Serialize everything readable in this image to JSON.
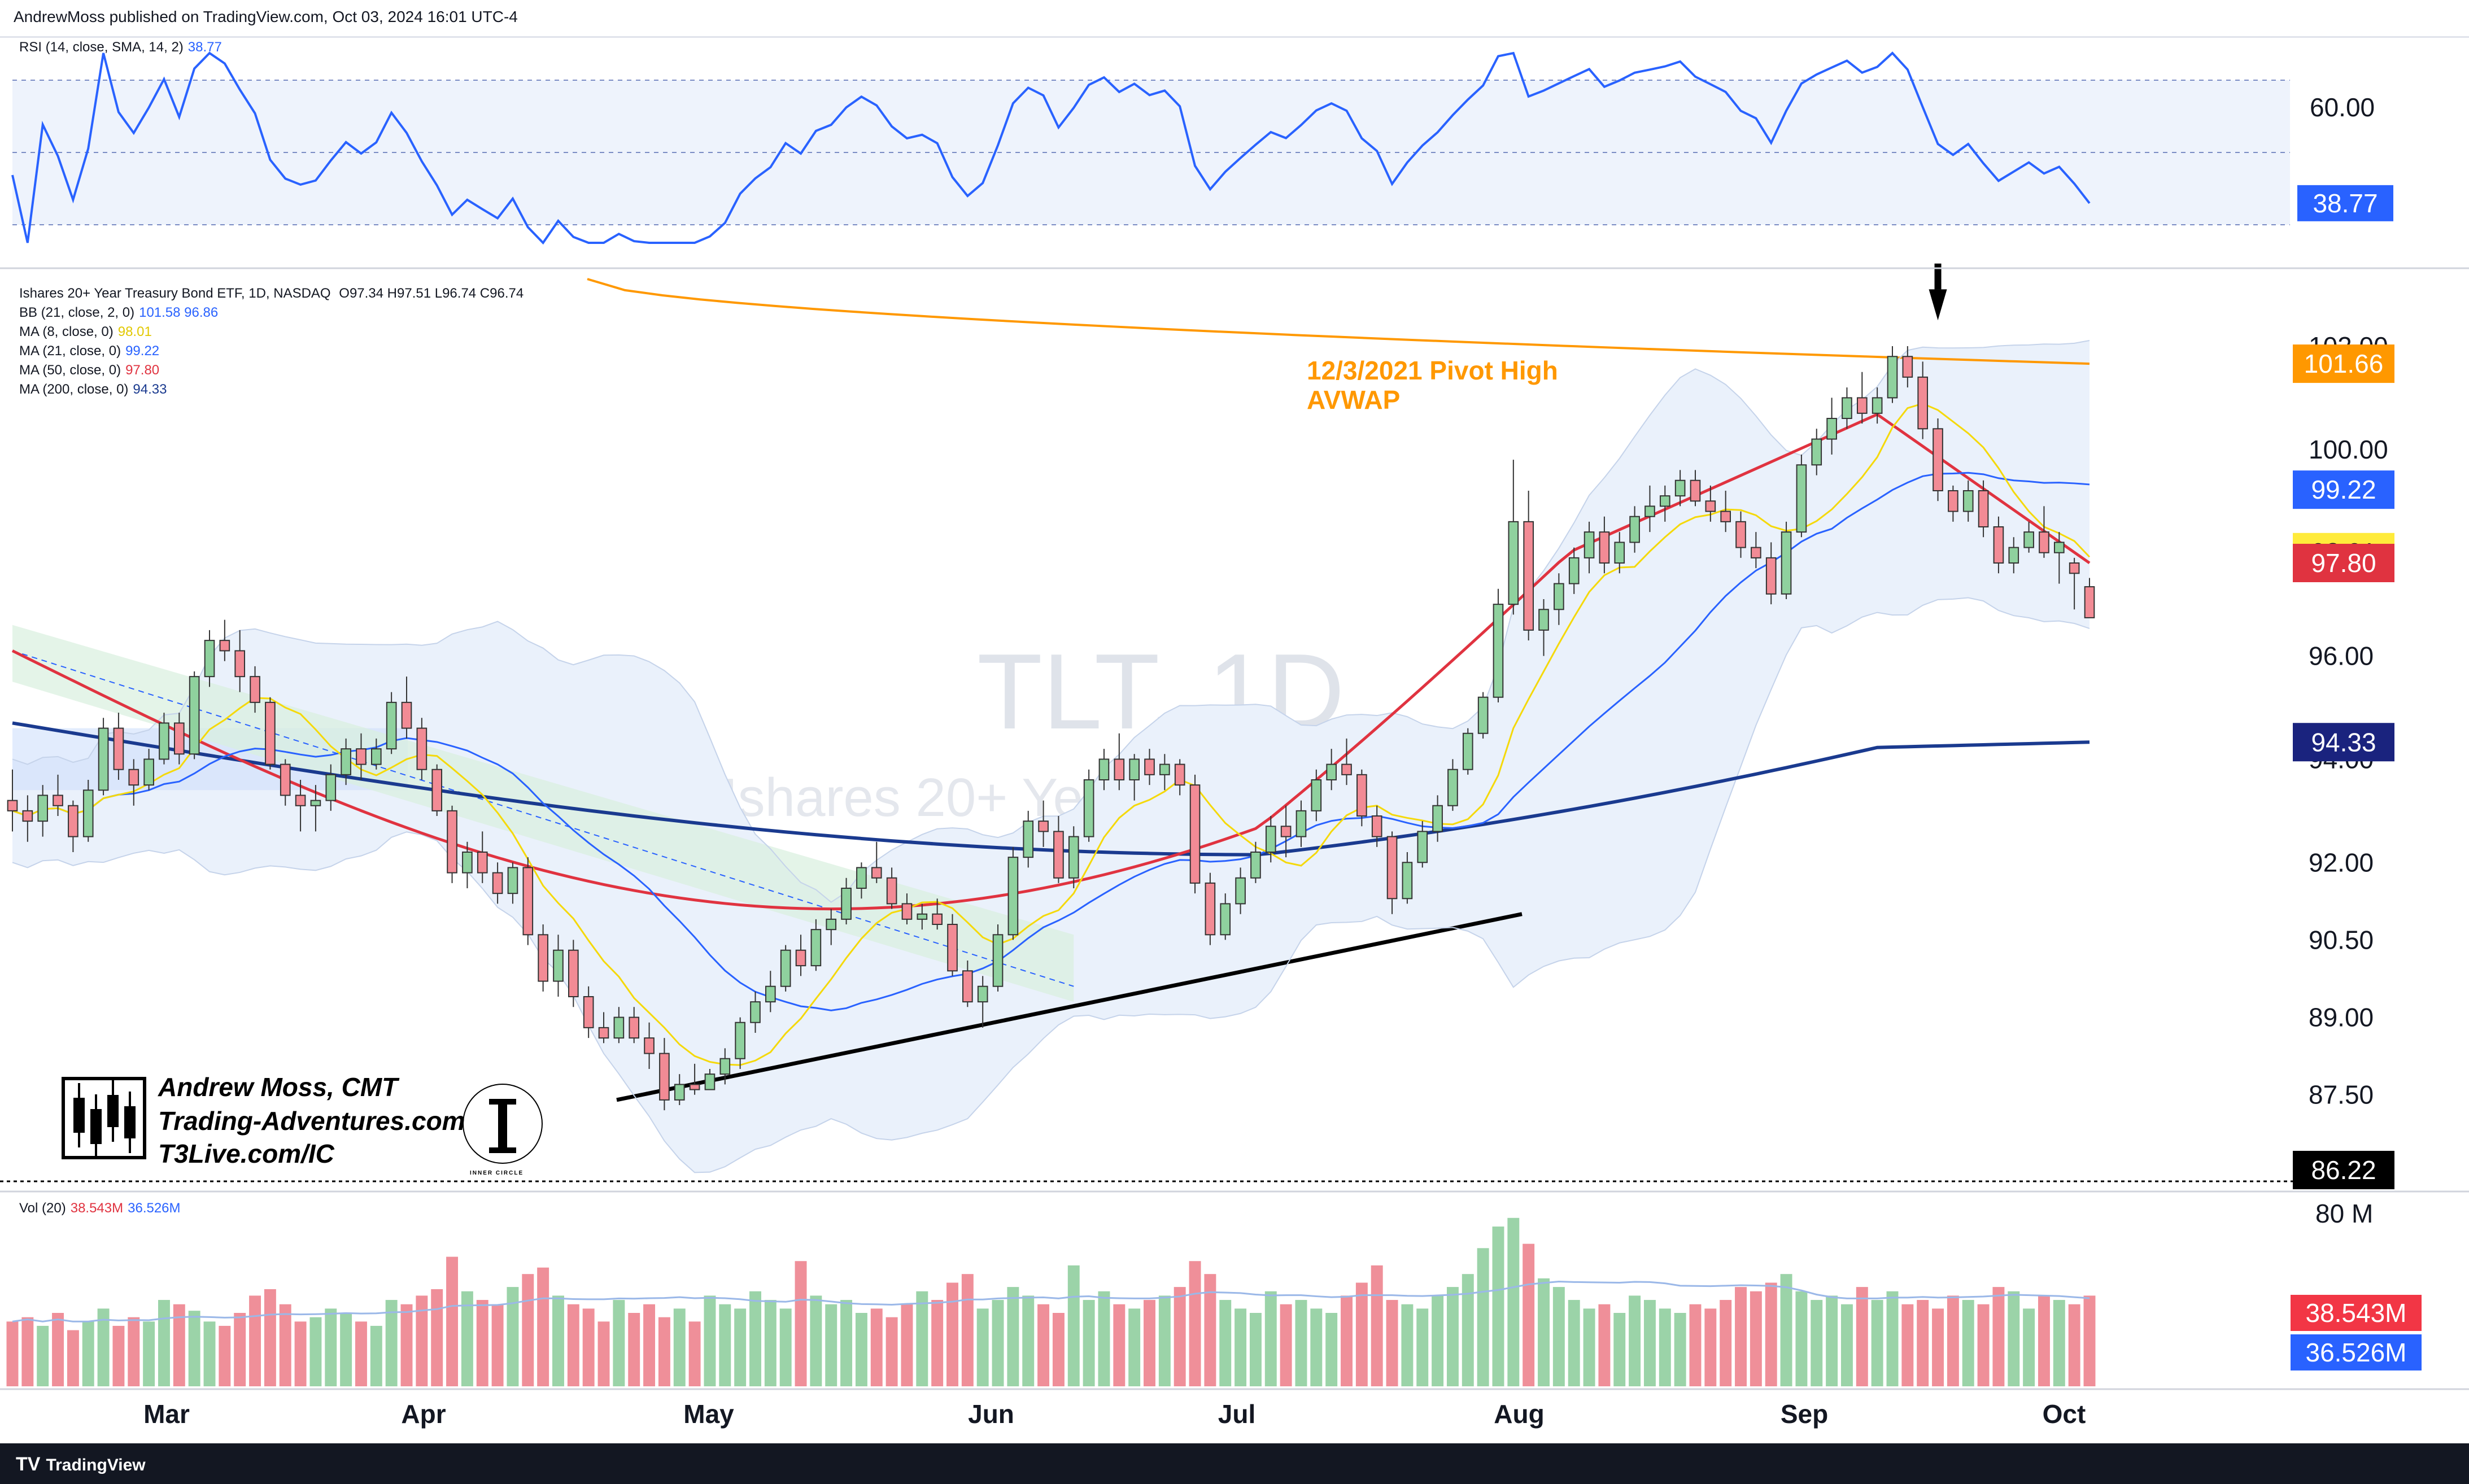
{
  "header": {
    "published": "AndrewMoss published on TradingView.com, Oct 03, 2024 16:01 UTC-4"
  },
  "footer": {
    "brand": "TradingView"
  },
  "rsi": {
    "legend": "RSI (14, close, SMA, 14, 2)",
    "value": "38.77",
    "axis_labels": [
      "60.00"
    ],
    "last_label": "38.77",
    "last_color": "#2962ff",
    "upper_band": 66,
    "lower_band": 34,
    "mid_band": 50
  },
  "price_legend": {
    "symbol": "Ishares 20+ Year Treasury Bond ETF, 1D, NASDAQ",
    "ohlc": "O97.34  H97.51  L96.74  C96.74",
    "lines": [
      {
        "label": "BB (21, close, 2, 0)",
        "values": "101.58  96.86",
        "color": "#2962ff"
      },
      {
        "label": "MA (8, close, 0)",
        "values": "98.01",
        "color": "#f5d90a"
      },
      {
        "label": "MA (21, close, 0)",
        "values": "99.22",
        "color": "#2962ff"
      },
      {
        "label": "MA (50, close, 0)",
        "values": "97.80",
        "color": "#e03340"
      },
      {
        "label": "MA (200, close, 0)",
        "values": "94.33",
        "color": "#1a3a8f"
      }
    ]
  },
  "volume": {
    "legend": "Vol (20)",
    "v1": "38.543M",
    "v2": "36.526M",
    "axis_label": "80 M",
    "tag1": "38.543M",
    "tag2": "36.526M"
  },
  "price_tags": [
    {
      "text": "101.66",
      "value": 101.66,
      "color": "#ff9800"
    },
    {
      "text": "99.22",
      "value": 99.22,
      "color": "#2962ff"
    },
    {
      "text": "98.01",
      "value": 98.01,
      "color": "#ffeb3b",
      "text_color": "#131722"
    },
    {
      "text": "97.80",
      "value": 97.8,
      "color": "#e03340"
    },
    {
      "text": "94.33",
      "value": 94.33,
      "color": "#1a237e"
    },
    {
      "text": "86.22",
      "value": 86.22,
      "color": "#000000"
    }
  ],
  "annotation": {
    "line1": "12/3/2021 Pivot High",
    "line2": "AVWAP",
    "color": "#ff9800"
  },
  "watermark": {
    "symbol": "TLT, 1D",
    "name": "Ishares 20+ Year Treasury Bond ETF"
  },
  "branding": {
    "name": "Andrew Moss, CMT",
    "site": "Trading-Adventures.com",
    "site2": "T3Live.com/IC",
    "logo_text": "INNER CIRCLE"
  },
  "colors": {
    "up": "#8fd19e",
    "down": "#f28b95",
    "bb_fill": "#eaf1fb",
    "avwap": "#ff9800",
    "trend": "#000000"
  },
  "chart_data": {
    "type": "candlestick",
    "title": "Ishares 20+ Year Treasury Bond ETF, 1D, NASDAQ",
    "x_tick_labels": [
      "Mar",
      "Apr",
      "May",
      "Jun",
      "Jul",
      "Aug",
      "Sep",
      "Oct"
    ],
    "y_tick_labels": [
      "102.00",
      "100.00",
      "96.00",
      "94.00",
      "92.00",
      "90.50",
      "89.00",
      "87.50"
    ],
    "y_ticks": [
      102,
      100,
      96,
      94,
      92,
      90.5,
      89,
      87.5
    ],
    "ylim": [
      85.9,
      103.4
    ],
    "ohlc_approx": [
      [
        93.2,
        93.8,
        92.6,
        93.0
      ],
      [
        93.0,
        93.3,
        92.4,
        92.8
      ],
      [
        92.8,
        93.5,
        92.5,
        93.3
      ],
      [
        93.3,
        93.7,
        92.9,
        93.1
      ],
      [
        93.1,
        93.2,
        92.2,
        92.5
      ],
      [
        92.5,
        93.6,
        92.4,
        93.4
      ],
      [
        93.4,
        94.8,
        93.3,
        94.6
      ],
      [
        94.6,
        94.9,
        93.6,
        93.8
      ],
      [
        93.8,
        94.0,
        93.1,
        93.5
      ],
      [
        93.5,
        94.2,
        93.4,
        94.0
      ],
      [
        94.0,
        94.9,
        93.9,
        94.7
      ],
      [
        94.7,
        94.9,
        93.9,
        94.1
      ],
      [
        94.1,
        95.7,
        94.0,
        95.6
      ],
      [
        95.6,
        96.5,
        95.4,
        96.3
      ],
      [
        96.3,
        96.7,
        95.9,
        96.1
      ],
      [
        96.1,
        96.5,
        95.3,
        95.6
      ],
      [
        95.6,
        95.8,
        94.9,
        95.1
      ],
      [
        95.1,
        95.2,
        93.8,
        93.9
      ],
      [
        93.9,
        94.0,
        93.1,
        93.3
      ],
      [
        93.3,
        93.6,
        92.6,
        93.1
      ],
      [
        93.1,
        93.5,
        92.6,
        93.2
      ],
      [
        93.2,
        93.9,
        93.0,
        93.7
      ],
      [
        93.7,
        94.4,
        93.5,
        94.2
      ],
      [
        94.2,
        94.5,
        93.6,
        93.9
      ],
      [
        93.9,
        94.4,
        93.8,
        94.2
      ],
      [
        94.2,
        95.3,
        94.1,
        95.1
      ],
      [
        95.1,
        95.6,
        94.4,
        94.6
      ],
      [
        94.6,
        94.8,
        93.6,
        93.8
      ],
      [
        93.8,
        93.9,
        92.9,
        93.0
      ],
      [
        93.0,
        93.1,
        91.6,
        91.8
      ],
      [
        91.8,
        92.4,
        91.5,
        92.2
      ],
      [
        92.2,
        92.6,
        91.6,
        91.8
      ],
      [
        91.8,
        92.0,
        91.2,
        91.4
      ],
      [
        91.4,
        92.0,
        91.2,
        91.9
      ],
      [
        91.9,
        92.1,
        90.4,
        90.6
      ],
      [
        90.6,
        90.8,
        89.5,
        89.7
      ],
      [
        89.7,
        90.6,
        89.4,
        90.3
      ],
      [
        90.3,
        90.5,
        89.2,
        89.4
      ],
      [
        89.4,
        89.6,
        88.6,
        88.8
      ],
      [
        88.8,
        89.1,
        88.5,
        88.6
      ],
      [
        88.6,
        89.2,
        88.5,
        89.0
      ],
      [
        89.0,
        89.2,
        88.5,
        88.6
      ],
      [
        88.6,
        88.9,
        88.0,
        88.3
      ],
      [
        88.3,
        88.6,
        87.2,
        87.4
      ],
      [
        87.4,
        87.9,
        87.3,
        87.7
      ],
      [
        87.7,
        88.1,
        87.5,
        87.6
      ],
      [
        87.6,
        88.0,
        87.6,
        87.9
      ],
      [
        87.9,
        88.4,
        87.7,
        88.2
      ],
      [
        88.2,
        89.0,
        88.0,
        88.9
      ],
      [
        88.9,
        89.5,
        88.7,
        89.3
      ],
      [
        89.3,
        89.9,
        89.1,
        89.6
      ],
      [
        89.6,
        90.4,
        89.5,
        90.3
      ],
      [
        90.3,
        90.6,
        89.8,
        90.0
      ],
      [
        90.0,
        90.9,
        89.9,
        90.7
      ],
      [
        90.7,
        91.1,
        90.4,
        90.9
      ],
      [
        90.9,
        91.7,
        90.8,
        91.5
      ],
      [
        91.5,
        92.0,
        91.3,
        91.9
      ],
      [
        91.9,
        92.4,
        91.6,
        91.7
      ],
      [
        91.7,
        91.9,
        91.1,
        91.2
      ],
      [
        91.2,
        91.4,
        90.8,
        90.9
      ],
      [
        90.9,
        91.2,
        90.7,
        91.0
      ],
      [
        91.0,
        91.3,
        90.7,
        90.8
      ],
      [
        90.8,
        91.0,
        89.8,
        89.9
      ],
      [
        89.9,
        90.1,
        89.2,
        89.3
      ],
      [
        89.3,
        89.8,
        88.8,
        89.6
      ],
      [
        89.6,
        90.8,
        89.5,
        90.6
      ],
      [
        90.6,
        92.3,
        90.5,
        92.1
      ],
      [
        92.1,
        93.0,
        91.9,
        92.8
      ],
      [
        92.8,
        93.2,
        92.3,
        92.6
      ],
      [
        92.6,
        92.9,
        91.6,
        91.7
      ],
      [
        91.7,
        92.7,
        91.5,
        92.5
      ],
      [
        92.5,
        93.8,
        92.4,
        93.6
      ],
      [
        93.6,
        94.2,
        93.4,
        94.0
      ],
      [
        94.0,
        94.5,
        93.4,
        93.6
      ],
      [
        93.6,
        94.1,
        93.2,
        94.0
      ],
      [
        94.0,
        94.2,
        93.5,
        93.7
      ],
      [
        93.7,
        94.1,
        93.4,
        93.9
      ],
      [
        93.9,
        94.0,
        93.3,
        93.5
      ],
      [
        93.5,
        93.7,
        91.4,
        91.6
      ],
      [
        91.6,
        91.8,
        90.4,
        90.6
      ],
      [
        90.6,
        91.4,
        90.5,
        91.2
      ],
      [
        91.2,
        91.9,
        91.0,
        91.7
      ],
      [
        91.7,
        92.4,
        91.6,
        92.2
      ],
      [
        92.2,
        92.9,
        92.0,
        92.7
      ],
      [
        92.7,
        93.1,
        92.1,
        92.5
      ],
      [
        92.5,
        93.2,
        92.3,
        93.0
      ],
      [
        93.0,
        93.8,
        92.8,
        93.6
      ],
      [
        93.6,
        94.2,
        93.4,
        93.9
      ],
      [
        93.9,
        94.4,
        93.5,
        93.7
      ],
      [
        93.7,
        93.8,
        92.7,
        92.9
      ],
      [
        92.9,
        93.1,
        92.3,
        92.5
      ],
      [
        92.5,
        92.6,
        91.0,
        91.3
      ],
      [
        91.3,
        92.2,
        91.2,
        92.0
      ],
      [
        92.0,
        92.8,
        91.9,
        92.6
      ],
      [
        92.6,
        93.3,
        92.4,
        93.1
      ],
      [
        93.1,
        94.0,
        93.0,
        93.8
      ],
      [
        93.8,
        94.6,
        93.7,
        94.5
      ],
      [
        94.5,
        95.3,
        94.4,
        95.2
      ],
      [
        95.2,
        97.3,
        95.1,
        97.0
      ],
      [
        97.0,
        99.8,
        96.8,
        98.6
      ],
      [
        98.6,
        99.2,
        96.3,
        96.5
      ],
      [
        96.5,
        97.1,
        96.0,
        96.9
      ],
      [
        96.9,
        97.6,
        96.6,
        97.4
      ],
      [
        97.4,
        98.1,
        97.2,
        97.9
      ],
      [
        97.9,
        98.6,
        97.6,
        98.4
      ],
      [
        98.4,
        98.7,
        97.6,
        97.8
      ],
      [
        97.8,
        98.4,
        97.6,
        98.2
      ],
      [
        98.2,
        98.9,
        98.0,
        98.7
      ],
      [
        98.7,
        99.3,
        98.4,
        98.9
      ],
      [
        98.9,
        99.3,
        98.6,
        99.1
      ],
      [
        99.1,
        99.6,
        98.9,
        99.4
      ],
      [
        99.4,
        99.6,
        98.9,
        99.0
      ],
      [
        99.0,
        99.3,
        98.6,
        98.8
      ],
      [
        98.8,
        99.2,
        98.4,
        98.6
      ],
      [
        98.6,
        98.8,
        97.9,
        98.1
      ],
      [
        98.1,
        98.4,
        97.7,
        97.9
      ],
      [
        97.9,
        98.2,
        97.0,
        97.2
      ],
      [
        97.2,
        98.6,
        97.1,
        98.4
      ],
      [
        98.4,
        99.9,
        98.3,
        99.7
      ],
      [
        99.7,
        100.4,
        99.5,
        100.2
      ],
      [
        100.2,
        101.0,
        99.9,
        100.6
      ],
      [
        100.6,
        101.2,
        100.4,
        101.0
      ],
      [
        101.0,
        101.5,
        100.5,
        100.7
      ],
      [
        100.7,
        101.2,
        100.5,
        101.0
      ],
      [
        101.0,
        102.0,
        100.9,
        101.8
      ],
      [
        101.8,
        102.0,
        101.2,
        101.4
      ],
      [
        101.4,
        101.7,
        100.2,
        100.4
      ],
      [
        100.4,
        100.6,
        99.0,
        99.2
      ],
      [
        99.2,
        99.3,
        98.6,
        98.8
      ],
      [
        98.8,
        99.4,
        98.6,
        99.2
      ],
      [
        99.2,
        99.4,
        98.3,
        98.5
      ],
      [
        98.5,
        98.7,
        97.6,
        97.8
      ],
      [
        97.8,
        98.3,
        97.6,
        98.1
      ],
      [
        98.1,
        98.6,
        98.0,
        98.4
      ],
      [
        98.4,
        98.9,
        97.9,
        98.0
      ],
      [
        98.0,
        98.4,
        97.4,
        98.2
      ],
      [
        97.8,
        97.9,
        96.9,
        97.6
      ],
      [
        97.34,
        97.51,
        96.74,
        96.74
      ]
    ],
    "volume_approx": [
      30,
      32,
      28,
      34,
      26,
      30,
      36,
      28,
      32,
      30,
      40,
      38,
      35,
      30,
      28,
      34,
      42,
      45,
      38,
      30,
      32,
      36,
      34,
      30,
      28,
      40,
      38,
      42,
      45,
      60,
      44,
      40,
      38,
      46,
      52,
      55,
      42,
      38,
      36,
      30,
      40,
      34,
      38,
      32,
      36,
      30,
      42,
      38,
      36,
      44,
      40,
      36,
      58,
      42,
      38,
      40,
      34,
      36,
      32,
      38,
      44,
      40,
      48,
      52,
      36,
      40,
      46,
      42,
      38,
      34,
      56,
      40,
      44,
      38,
      36,
      40,
      42,
      46,
      58,
      52,
      40,
      36,
      34,
      44,
      38,
      40,
      36,
      34,
      42,
      48,
      56,
      40,
      38,
      36,
      42,
      46,
      52,
      64,
      74,
      78,
      66,
      50,
      46,
      40,
      36,
      38,
      34,
      42,
      40,
      36,
      34,
      38,
      36,
      40,
      46,
      44,
      48,
      52,
      44,
      40,
      42,
      38,
      46,
      40,
      44,
      38,
      40,
      36,
      42,
      40,
      38,
      46,
      44,
      36,
      42,
      40,
      38,
      42
    ],
    "series": [
      {
        "name": "BB (21, close, 2, 0)",
        "values": [
          101.58,
          96.86
        ]
      },
      {
        "name": "MA (8, close, 0)",
        "values": [
          98.01
        ]
      },
      {
        "name": "MA (21, close, 0)",
        "values": [
          99.22
        ]
      },
      {
        "name": "MA (50, close, 0)",
        "values": [
          97.8
        ]
      },
      {
        "name": "MA (200, close, 0)",
        "values": [
          94.33
        ]
      }
    ]
  }
}
